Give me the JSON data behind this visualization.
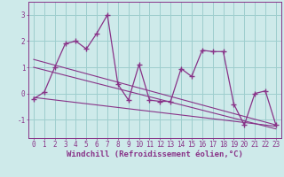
{
  "x": [
    0,
    1,
    2,
    3,
    4,
    5,
    6,
    7,
    8,
    9,
    10,
    11,
    12,
    13,
    14,
    15,
    16,
    17,
    18,
    19,
    20,
    21,
    22,
    23
  ],
  "y_main": [
    -0.2,
    0.05,
    1.0,
    1.9,
    2.0,
    1.7,
    2.3,
    3.0,
    0.35,
    -0.25,
    1.1,
    -0.25,
    -0.3,
    -0.3,
    0.95,
    0.65,
    1.65,
    1.6,
    1.6,
    -0.4,
    -1.2,
    0.0,
    0.1,
    -1.2
  ],
  "trend1_x": [
    0,
    23
  ],
  "trend1_y": [
    1.3,
    -1.2
  ],
  "trend2_x": [
    0,
    23
  ],
  "trend2_y": [
    1.0,
    -1.35
  ],
  "trend3_x": [
    0,
    23
  ],
  "trend3_y": [
    -0.15,
    -1.25
  ],
  "bg_color": "#ceeaea",
  "line_color": "#883388",
  "grid_color": "#9ecece",
  "xlabel": "Windchill (Refroidissement éolien,°C)",
  "ylim": [
    -1.7,
    3.5
  ],
  "xlim": [
    -0.5,
    23.5
  ],
  "yticks": [
    -1,
    0,
    1,
    2,
    3
  ],
  "xticks": [
    0,
    1,
    2,
    3,
    4,
    5,
    6,
    7,
    8,
    9,
    10,
    11,
    12,
    13,
    14,
    15,
    16,
    17,
    18,
    19,
    20,
    21,
    22,
    23
  ],
  "tick_fontsize": 5.5,
  "xlabel_fontsize": 6.5
}
